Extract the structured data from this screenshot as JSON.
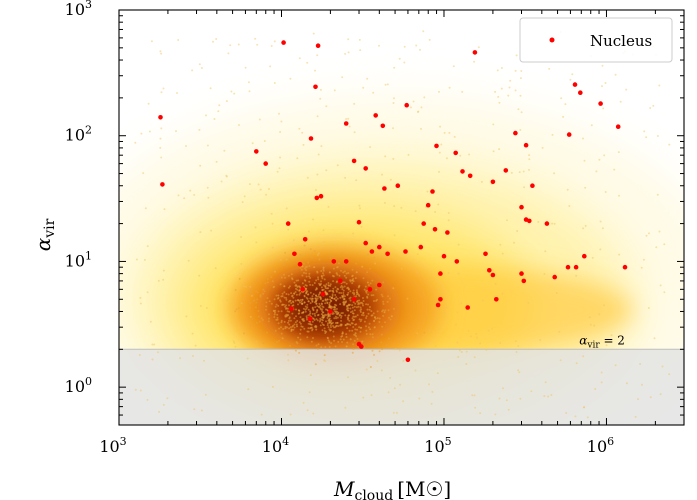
{
  "chart_data": {
    "type": "scatter",
    "title": "",
    "xlabel": "M_cloud [M☉]",
    "xlabel_main": "M",
    "xlabel_sub": "cloud",
    "xlabel_units": "[M☉]",
    "ylabel": "α_vir",
    "ylabel_main": "α",
    "ylabel_sub": "vir",
    "xscale": "log",
    "yscale": "log",
    "xlim": [
      1000,
      3000000
    ],
    "ylim": [
      0.5,
      1000
    ],
    "xticks": [
      {
        "value": 1000,
        "base": "10",
        "exp": "3"
      },
      {
        "value": 10000,
        "base": "10",
        "exp": "4"
      },
      {
        "value": 100000,
        "base": "10",
        "exp": "5"
      },
      {
        "value": 1000000,
        "base": "10",
        "exp": "6"
      }
    ],
    "yticks": [
      {
        "value": 1,
        "base": "10",
        "exp": "0"
      },
      {
        "value": 10,
        "base": "10",
        "exp": "1"
      },
      {
        "value": 100,
        "base": "10",
        "exp": "2"
      },
      {
        "value": 1000,
        "base": "10",
        "exp": "3"
      }
    ],
    "threshold": {
      "value": 2,
      "label_main": "α",
      "label_sub": "vir",
      "label_rest": " = 2",
      "shade_color": "#e3e3e3",
      "line_color": "#bdbdbd"
    },
    "background_density": {
      "colormap": "afmhot_r",
      "center_mass": 18000,
      "center_alpha": 4.5,
      "note": "2D density of all clouds, darkest near center"
    },
    "legend": {
      "label": "Nucleus",
      "location": "upper right",
      "marker_color": "#ff0000"
    },
    "series": [
      {
        "name": "Nucleus",
        "color": "#ff0000",
        "points": [
          [
            10300,
            550
          ],
          [
            16800,
            520
          ],
          [
            155000,
            460
          ],
          [
            16200,
            245
          ],
          [
            1800,
            140
          ],
          [
            59000,
            175
          ],
          [
            38000,
            145
          ],
          [
            42000,
            120
          ],
          [
            25000,
            125
          ],
          [
            15200,
            95
          ],
          [
            7000,
            75
          ],
          [
            8000,
            60
          ],
          [
            640000,
            255
          ],
          [
            690000,
            220
          ],
          [
            920000,
            180
          ],
          [
            1180000,
            118
          ],
          [
            275000,
            105
          ],
          [
            320000,
            84
          ],
          [
            590000,
            102
          ],
          [
            90000,
            83
          ],
          [
            118000,
            73
          ],
          [
            33000,
            55
          ],
          [
            28000,
            63
          ],
          [
            1850,
            41
          ],
          [
            17500,
            33
          ],
          [
            16500,
            32
          ],
          [
            43000,
            38
          ],
          [
            52000,
            40
          ],
          [
            85000,
            36
          ],
          [
            130000,
            52
          ],
          [
            145000,
            48
          ],
          [
            200000,
            43
          ],
          [
            350000,
            40
          ],
          [
            240000,
            53
          ],
          [
            300000,
            27
          ],
          [
            320000,
            21.5
          ],
          [
            335000,
            21
          ],
          [
            80000,
            28
          ],
          [
            430000,
            20
          ],
          [
            30000,
            20.5
          ],
          [
            75000,
            20
          ],
          [
            88000,
            18
          ],
          [
            105000,
            17
          ],
          [
            72000,
            13
          ],
          [
            58000,
            12
          ],
          [
            40000,
            13
          ],
          [
            45000,
            11.5
          ],
          [
            33000,
            14
          ],
          [
            36000,
            12
          ],
          [
            25000,
            10
          ],
          [
            21000,
            10
          ],
          [
            12000,
            11.5
          ],
          [
            13000,
            9.5
          ],
          [
            11000,
            20
          ],
          [
            14000,
            15
          ],
          [
            100000,
            11
          ],
          [
            120000,
            10
          ],
          [
            180000,
            11.5
          ],
          [
            190000,
            8.5
          ],
          [
            200000,
            7.8
          ],
          [
            300000,
            8
          ],
          [
            310000,
            7
          ],
          [
            480000,
            7.5
          ],
          [
            580000,
            9
          ],
          [
            650000,
            9
          ],
          [
            730000,
            11
          ],
          [
            1300000,
            9
          ],
          [
            95000,
            8
          ],
          [
            95000,
            5
          ],
          [
            92000,
            4.5
          ],
          [
            140000,
            4.3
          ],
          [
            210000,
            5
          ],
          [
            23000,
            7
          ],
          [
            35000,
            6
          ],
          [
            40000,
            6.5
          ],
          [
            28000,
            5
          ],
          [
            18000,
            5.5
          ],
          [
            15000,
            3.5
          ],
          [
            20000,
            4
          ],
          [
            30000,
            2.2
          ],
          [
            60000,
            1.65
          ],
          [
            11500,
            4.2
          ],
          [
            13500,
            6
          ],
          [
            31000,
            2.1
          ]
        ]
      }
    ]
  }
}
